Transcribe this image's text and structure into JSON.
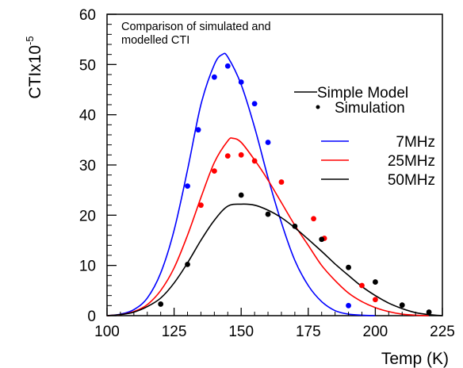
{
  "chart_data": {
    "type": "line",
    "title_lines": [
      "Comparison of simulated and",
      "modelled CTI"
    ],
    "xlabel": "Temp (K)",
    "ylabel": "CTIx10",
    "ylabel_exponent": "-5",
    "xlim": [
      100,
      225
    ],
    "ylim": [
      0,
      60
    ],
    "xticks": [
      100,
      125,
      150,
      175,
      200,
      225
    ],
    "yticks": [
      0,
      10,
      20,
      30,
      40,
      50,
      60
    ],
    "grid": false,
    "legend": {
      "placement": "right",
      "style_entries": [
        {
          "label": "Simple Model",
          "symbol": "line"
        },
        {
          "label": "Simulation",
          "symbol": "dot"
        }
      ],
      "freq_entries": [
        {
          "label": "7MHz",
          "color": "#0000ff"
        },
        {
          "label": "25MHz",
          "color": "#ff0000"
        },
        {
          "label": "50MHz",
          "color": "#000000"
        }
      ]
    },
    "series": [
      {
        "name": "7MHz",
        "color": "#0000ff",
        "model": {
          "x": [
            100,
            105,
            110,
            115,
            120,
            125,
            130,
            135,
            140,
            143,
            145,
            150,
            155,
            160,
            165,
            170,
            175,
            180,
            185,
            190,
            195,
            200
          ],
          "y": [
            0,
            0.3,
            1.2,
            3.5,
            8.5,
            17,
            29,
            42,
            50,
            52,
            51.5,
            46,
            37.5,
            27.5,
            18.5,
            11,
            6,
            2.8,
            1.0,
            0.3,
            0.1,
            0
          ]
        },
        "simulation": {
          "x": [
            130,
            134,
            140,
            145,
            150,
            155,
            160,
            190
          ],
          "y": [
            25.8,
            37,
            47.5,
            49.7,
            46.5,
            42.2,
            34.5,
            2
          ]
        }
      },
      {
        "name": "25MHz",
        "color": "#ff0000",
        "model": {
          "x": [
            100,
            105,
            110,
            115,
            120,
            125,
            130,
            135,
            140,
            145,
            147,
            150,
            155,
            160,
            165,
            170,
            175,
            180,
            185,
            190,
            195,
            200,
            205,
            210,
            215,
            220
          ],
          "y": [
            0,
            0.2,
            0.8,
            2.2,
            5,
            9.5,
            16,
            23.5,
            30.5,
            34.8,
            35.3,
            34.5,
            31,
            27,
            22.5,
            18,
            14,
            10,
            7,
            4.5,
            2.8,
            1.6,
            0.8,
            0.3,
            0.1,
            0
          ]
        },
        "simulation": {
          "x": [
            135,
            140,
            145,
            150,
            155,
            165,
            177,
            181,
            195,
            200
          ],
          "y": [
            22,
            28.8,
            31.8,
            32,
            30.8,
            26.6,
            19.3,
            15.4,
            6,
            3.2
          ]
        }
      },
      {
        "name": "50MHz",
        "color": "#000000",
        "model": {
          "x": [
            100,
            105,
            110,
            115,
            120,
            125,
            130,
            135,
            140,
            145,
            150,
            155,
            160,
            165,
            170,
            175,
            180,
            185,
            190,
            195,
            200,
            205,
            210,
            215,
            220,
            225
          ],
          "y": [
            0,
            0.2,
            0.7,
            1.8,
            3.5,
            6.5,
            10.5,
            15,
            19,
            21.8,
            22.2,
            22,
            21,
            19.5,
            17.5,
            15.2,
            12.8,
            10.3,
            8,
            5.8,
            4,
            2.5,
            1.4,
            0.6,
            0.2,
            0
          ]
        },
        "simulation": {
          "x": [
            120,
            130,
            150,
            160,
            170,
            180,
            190,
            200,
            210,
            220
          ],
          "y": [
            2.3,
            10.2,
            24,
            20.2,
            17.8,
            15.2,
            9.6,
            6.7,
            2.1,
            0.7
          ]
        }
      }
    ]
  }
}
